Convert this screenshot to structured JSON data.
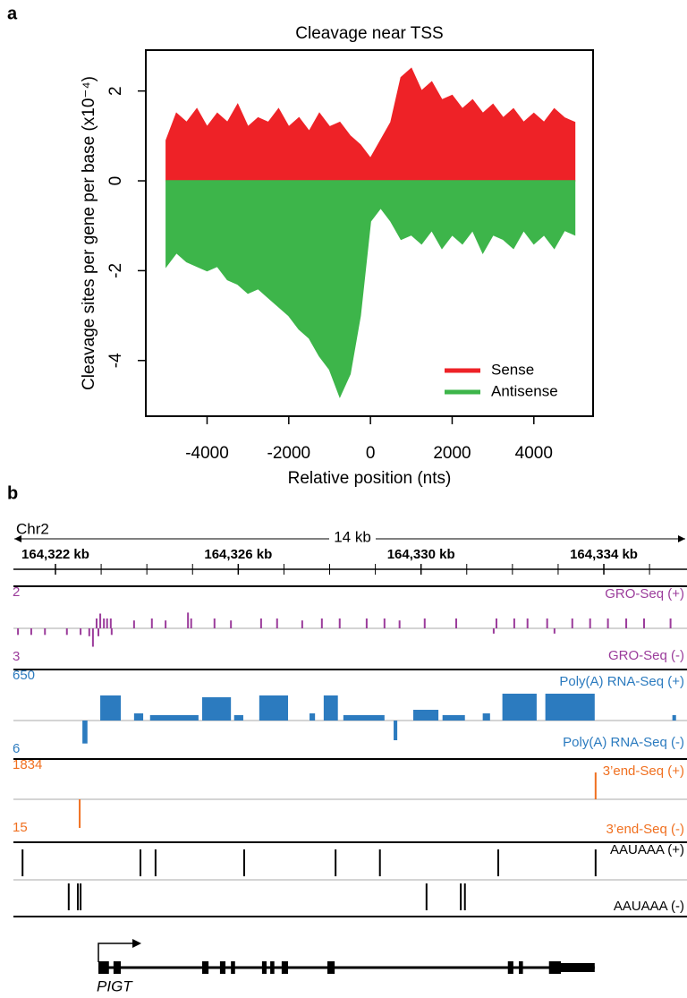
{
  "panel_labels": [
    "a",
    "b"
  ],
  "chart_data": [
    {
      "type": "area",
      "title": "Cleavage near TSS",
      "xlabel": "Relative position (nts)",
      "ylabel": "Cleavage sites per gene per base (x10⁻⁴)",
      "x": [
        -5000,
        -4750,
        -4500,
        -4250,
        -4000,
        -3750,
        -3500,
        -3250,
        -3000,
        -2750,
        -2500,
        -2250,
        -2000,
        -1750,
        -1500,
        -1250,
        -1000,
        -750,
        -500,
        -250,
        0,
        250,
        500,
        750,
        1000,
        1250,
        1500,
        1750,
        2000,
        2250,
        2500,
        2750,
        3000,
        3250,
        3500,
        3750,
        4000,
        4250,
        4500,
        4750,
        5000
      ],
      "series": [
        {
          "name": "Sense",
          "color": "#ee2227",
          "values": [
            0.9,
            1.5,
            1.3,
            1.6,
            1.2,
            1.5,
            1.3,
            1.7,
            1.2,
            1.4,
            1.3,
            1.6,
            1.2,
            1.4,
            1.1,
            1.5,
            1.2,
            1.3,
            1.0,
            0.8,
            0.5,
            0.9,
            1.3,
            2.3,
            2.5,
            2.0,
            2.2,
            1.8,
            1.9,
            1.6,
            1.8,
            1.5,
            1.7,
            1.4,
            1.6,
            1.3,
            1.5,
            1.3,
            1.6,
            1.4,
            1.3
          ]
        },
        {
          "name": "Antisense",
          "color": "#3db54a",
          "values": [
            -1.9,
            -1.6,
            -1.8,
            -1.9,
            -2.0,
            -1.9,
            -2.2,
            -2.3,
            -2.5,
            -2.4,
            -2.6,
            -2.8,
            -3.0,
            -3.3,
            -3.5,
            -3.9,
            -4.2,
            -4.8,
            -4.3,
            -3.0,
            -0.9,
            -0.6,
            -0.9,
            -1.3,
            -1.2,
            -1.4,
            -1.1,
            -1.5,
            -1.2,
            -1.4,
            -1.1,
            -1.6,
            -1.2,
            -1.3,
            -1.5,
            -1.1,
            -1.4,
            -1.2,
            -1.5,
            -1.1,
            -1.2
          ]
        }
      ],
      "xlim": [
        -5500,
        5450
      ],
      "ylim": [
        -5.24,
        2.91
      ],
      "xticks": [
        -4000,
        -2000,
        0,
        2000,
        4000
      ],
      "yticks": [
        -4,
        -2,
        0,
        2
      ],
      "legend": "bottom-right"
    },
    {
      "type": "genome-browser",
      "chromosome": "Chr2",
      "span_label": "14 kb",
      "xlim": [
        164321.08,
        164335.82
      ],
      "xticks": [
        {
          "value": 164322,
          "label": "164,322 kb"
        },
        {
          "value": 164326,
          "label": "164,326 kb"
        },
        {
          "value": 164330,
          "label": "164,330 kb"
        },
        {
          "value": 164334,
          "label": "164,334 kb"
        }
      ],
      "xminorticks": [
        164323,
        164324,
        164325,
        164327,
        164328,
        164329,
        164331,
        164332,
        164333,
        164335
      ],
      "tracks": [
        {
          "name_plus": "GRO-Seq (+)",
          "name_minus": "GRO-Seq (-)",
          "scale_plus": 2,
          "scale_minus": 3,
          "color": "#9b3c9b",
          "plus": {
            "x": [
              164322.9,
              164322.98,
              164323.06,
              164323.13,
              164323.21,
              164323.72,
              164324.11,
              164324.41,
              164324.9,
              164324.97,
              164325.48,
              164325.84,
              164326.5,
              164326.85,
              164327.4,
              164327.83,
              164328.22,
              164328.81,
              164329.2,
              164329.53,
              164330.08,
              164330.77,
              164331.65,
              164332.04,
              164332.33,
              164332.76,
              164333.31,
              164333.7,
              164334.09,
              164334.49,
              164334.88,
              164335.46
            ],
            "values": [
              0.5,
              0.75,
              0.5,
              0.5,
              0.5,
              0.4,
              0.5,
              0.4,
              0.8,
              0.5,
              0.5,
              0.4,
              0.5,
              0.5,
              0.4,
              0.5,
              0.5,
              0.5,
              0.5,
              0.4,
              0.5,
              0.5,
              0.5,
              0.5,
              0.5,
              0.5,
              0.5,
              0.5,
              0.5,
              0.5,
              0.5,
              0.5
            ]
          },
          "minus": {
            "x": [
              164321.18,
              164321.47,
              164321.77,
              164322.25,
              164322.55,
              164322.74,
              164322.82,
              164322.94,
              164323.23,
              164331.59,
              164332.92
            ],
            "values": [
              0.5,
              0.5,
              0.5,
              0.5,
              0.5,
              0.6,
              1.4,
              0.6,
              0.5,
              0.4,
              0.4
            ]
          }
        },
        {
          "name_plus": "Poly(A) RNA-Seq (+)",
          "name_minus": "Poly(A) RNA-Seq (-)",
          "scale_plus": 650,
          "scale_minus": 6,
          "color": "#2c7bbf",
          "plus": {
            "start": [
              164322.98,
              164323.72,
              164324.07,
              164325.21,
              164325.91,
              164326.46,
              164327.56,
              164327.87,
              164328.3,
              164329.83,
              164330.47,
              164331.35,
              164331.78,
              164332.72,
              164335.5
            ],
            "end": [
              164323.43,
              164323.92,
              164325.13,
              164325.84,
              164326.11,
              164327.09,
              164327.68,
              164328.18,
              164329.2,
              164330.38,
              164330.96,
              164331.51,
              164332.53,
              164333.8,
              164335.58
            ],
            "values": [
              414,
              118,
              90,
              384,
              90,
              414,
              118,
              414,
              90,
              177,
              90,
              118,
              443,
              443,
              90
            ]
          },
          "minus": {
            "start": [
              164322.59,
              164329.4
            ],
            "end": [
              164322.7,
              164329.48
            ],
            "values": [
              3.5,
              3.0
            ]
          }
        },
        {
          "name_plus": "3’end-Seq (+)",
          "name_minus": "3’end-Seq (-)",
          "scale_plus": 1834,
          "scale_minus": 15,
          "color": "#f07020",
          "plus": {
            "x": [
              164333.82
            ],
            "values": [
              1250
            ]
          },
          "minus": {
            "x": [
              164322.53
            ],
            "values": [
              10.9
            ]
          }
        },
        {
          "name_plus": "AAUAAA (+)",
          "name_minus": "AAUAAA (-)",
          "color": "#000000",
          "plus": {
            "x": [
              164321.28,
              164323.86,
              164324.19,
              164326.13,
              164328.13,
              164329.1,
              164331.69,
              164333.82
            ]
          },
          "minus": {
            "x": [
              164322.29,
              164322.49,
              164322.55,
              164330.12,
              164330.87,
              164330.96
            ]
          }
        }
      ],
      "gene": {
        "name": "PIGT",
        "start": 164322.94,
        "end": 164333.8,
        "exons": [
          [
            164322.94,
            164323.17
          ],
          [
            164323.27,
            164323.43
          ],
          [
            164325.21,
            164325.35
          ],
          [
            164325.6,
            164325.72
          ],
          [
            164325.84,
            164325.93
          ],
          [
            164326.52,
            164326.62
          ],
          [
            164326.7,
            164326.79
          ],
          [
            164326.95,
            164327.09
          ],
          [
            164327.95,
            164328.11
          ],
          [
            164331.9,
            164332.02
          ],
          [
            164332.14,
            164332.23
          ],
          [
            164332.8,
            164333.06
          ]
        ],
        "utr": [
          164333.06,
          164333.8
        ]
      }
    }
  ]
}
